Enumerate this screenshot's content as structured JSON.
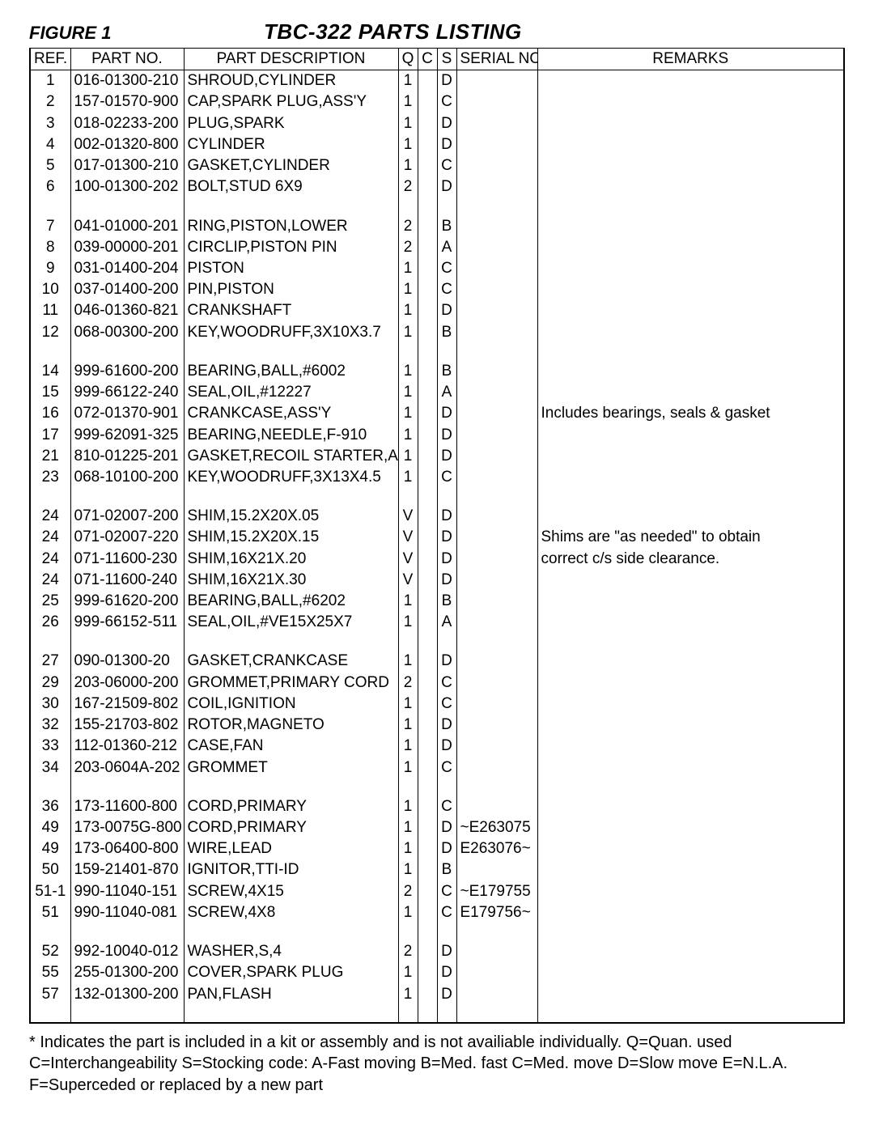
{
  "header": {
    "figure_label": "FIGURE 1",
    "title": "TBC-322 PARTS LISTING"
  },
  "columns": {
    "ref": "REF.",
    "partno": "PART NO.",
    "desc": "PART DESCRIPTION",
    "q": "Q",
    "c": "C",
    "s": "S",
    "serial": "SERIAL NO.",
    "remarks": "REMARKS"
  },
  "groups": [
    [
      {
        "ref": "1",
        "partno": "016-01300-210",
        "desc": "SHROUD,CYLINDER",
        "q": "1",
        "c": "",
        "s": "D",
        "serial": "",
        "remarks": ""
      },
      {
        "ref": "2",
        "partno": "157-01570-900",
        "desc": "CAP,SPARK PLUG,ASS'Y",
        "q": "1",
        "c": "",
        "s": "C",
        "serial": "",
        "remarks": ""
      },
      {
        "ref": "3",
        "partno": "018-02233-200",
        "desc": "PLUG,SPARK",
        "q": "1",
        "c": "",
        "s": "D",
        "serial": "",
        "remarks": ""
      },
      {
        "ref": "4",
        "partno": "002-01320-800",
        "desc": "CYLINDER",
        "q": "1",
        "c": "",
        "s": "D",
        "serial": "",
        "remarks": ""
      },
      {
        "ref": "5",
        "partno": "017-01300-210",
        "desc": "GASKET,CYLINDER",
        "q": "1",
        "c": "",
        "s": "C",
        "serial": "",
        "remarks": ""
      },
      {
        "ref": "6",
        "partno": "100-01300-202",
        "desc": "BOLT,STUD 6X9",
        "q": "2",
        "c": "",
        "s": "D",
        "serial": "",
        "remarks": ""
      }
    ],
    [
      {
        "ref": "7",
        "partno": "041-01000-201",
        "desc": "RING,PISTON,LOWER",
        "q": "2",
        "c": "",
        "s": "B",
        "serial": "",
        "remarks": ""
      },
      {
        "ref": "8",
        "partno": "039-00000-201",
        "desc": "CIRCLIP,PISTON PIN",
        "q": "2",
        "c": "",
        "s": "A",
        "serial": "",
        "remarks": ""
      },
      {
        "ref": "9",
        "partno": "031-01400-204",
        "desc": "PISTON",
        "q": "1",
        "c": "",
        "s": "C",
        "serial": "",
        "remarks": ""
      },
      {
        "ref": "10",
        "partno": "037-01400-200",
        "desc": "PIN,PISTON",
        "q": "1",
        "c": "",
        "s": "C",
        "serial": "",
        "remarks": ""
      },
      {
        "ref": "11",
        "partno": "046-01360-821",
        "desc": "CRANKSHAFT",
        "q": "1",
        "c": "",
        "s": "D",
        "serial": "",
        "remarks": ""
      },
      {
        "ref": "12",
        "partno": "068-00300-200",
        "desc": "KEY,WOODRUFF,3X10X3.7",
        "q": "1",
        "c": "",
        "s": "B",
        "serial": "",
        "remarks": ""
      }
    ],
    [
      {
        "ref": "14",
        "partno": "999-61600-200",
        "desc": "BEARING,BALL,#6002",
        "q": "1",
        "c": "",
        "s": "B",
        "serial": "",
        "remarks": ""
      },
      {
        "ref": "15",
        "partno": "999-66122-240",
        "desc": "SEAL,OIL,#12227",
        "q": "1",
        "c": "",
        "s": "A",
        "serial": "",
        "remarks": ""
      },
      {
        "ref": "16",
        "partno": "072-01370-901",
        "desc": "CRANKCASE,ASS'Y",
        "q": "1",
        "c": "",
        "s": "D",
        "serial": "",
        "remarks": "Includes bearings, seals & gasket"
      },
      {
        "ref": "17",
        "partno": "999-62091-325",
        "desc": "BEARING,NEEDLE,F-910",
        "q": "1",
        "c": "",
        "s": "D",
        "serial": "",
        "remarks": ""
      },
      {
        "ref": "21",
        "partno": "810-01225-201",
        "desc": "GASKET,RECOIL STARTER,A",
        "q": "1",
        "c": "",
        "s": "D",
        "serial": "",
        "remarks": ""
      },
      {
        "ref": "23",
        "partno": "068-10100-200",
        "desc": "KEY,WOODRUFF,3X13X4.5",
        "q": "1",
        "c": "",
        "s": "C",
        "serial": "",
        "remarks": ""
      }
    ],
    [
      {
        "ref": "24",
        "partno": "071-02007-200",
        "desc": "SHIM,15.2X20X.05",
        "q": "V",
        "c": "",
        "s": "D",
        "serial": "",
        "remarks": ""
      },
      {
        "ref": "24",
        "partno": "071-02007-220",
        "desc": "SHIM,15.2X20X.15",
        "q": "V",
        "c": "",
        "s": "D",
        "serial": "",
        "remarks": "Shims are \"as needed\" to obtain"
      },
      {
        "ref": "24",
        "partno": "071-11600-230",
        "desc": "SHIM,16X21X.20",
        "q": "V",
        "c": "",
        "s": "D",
        "serial": "",
        "remarks": "correct c/s side clearance."
      },
      {
        "ref": "24",
        "partno": "071-11600-240",
        "desc": "SHIM,16X21X.30",
        "q": "V",
        "c": "",
        "s": "D",
        "serial": "",
        "remarks": ""
      },
      {
        "ref": "25",
        "partno": "999-61620-200",
        "desc": "BEARING,BALL,#6202",
        "q": "1",
        "c": "",
        "s": "B",
        "serial": "",
        "remarks": ""
      },
      {
        "ref": "26",
        "partno": "999-66152-511",
        "desc": "SEAL,OIL,#VE15X25X7",
        "q": "1",
        "c": "",
        "s": "A",
        "serial": "",
        "remarks": ""
      }
    ],
    [
      {
        "ref": "27",
        "partno": "090-01300-20",
        "desc": "GASKET,CRANKCASE",
        "q": "1",
        "c": "",
        "s": "D",
        "serial": "",
        "remarks": ""
      },
      {
        "ref": "29",
        "partno": "203-06000-200",
        "desc": "GROMMET,PRIMARY CORD",
        "q": "2",
        "c": "",
        "s": "C",
        "serial": "",
        "remarks": ""
      },
      {
        "ref": "30",
        "partno": "167-21509-802",
        "desc": "COIL,IGNITION",
        "q": "1",
        "c": "",
        "s": "C",
        "serial": "",
        "remarks": ""
      },
      {
        "ref": "32",
        "partno": "155-21703-802",
        "desc": "ROTOR,MAGNETO",
        "q": "1",
        "c": "",
        "s": "D",
        "serial": "",
        "remarks": ""
      },
      {
        "ref": "33",
        "partno": "112-01360-212",
        "desc": "CASE,FAN",
        "q": "1",
        "c": "",
        "s": "D",
        "serial": "",
        "remarks": ""
      },
      {
        "ref": "34",
        "partno": "203-0604A-202",
        "desc": "GROMMET",
        "q": "1",
        "c": "",
        "s": "C",
        "serial": "",
        "remarks": ""
      }
    ],
    [
      {
        "ref": "36",
        "partno": "173-11600-800",
        "desc": "CORD,PRIMARY",
        "q": "1",
        "c": "",
        "s": "C",
        "serial": "",
        "remarks": ""
      },
      {
        "ref": "49",
        "partno": "173-0075G-800",
        "desc": "CORD,PRIMARY",
        "q": "1",
        "c": "",
        "s": "D",
        "serial": "~E263075",
        "remarks": ""
      },
      {
        "ref": "49",
        "partno": "173-06400-800",
        "desc": "WIRE,LEAD",
        "q": "1",
        "c": "",
        "s": "D",
        "serial": "E263076~",
        "remarks": ""
      },
      {
        "ref": "50",
        "partno": "159-21401-870",
        "desc": "IGNITOR,TTI-ID",
        "q": "1",
        "c": "",
        "s": "B",
        "serial": "",
        "remarks": ""
      },
      {
        "ref": "51-1",
        "partno": "990-11040-151",
        "desc": "SCREW,4X15",
        "q": "2",
        "c": "",
        "s": "C",
        "serial": "~E179755",
        "remarks": ""
      },
      {
        "ref": "51",
        "partno": "990-11040-081",
        "desc": "SCREW,4X8",
        "q": "1",
        "c": "",
        "s": "C",
        "serial": "E179756~",
        "remarks": ""
      }
    ],
    [
      {
        "ref": "52",
        "partno": "992-10040-012",
        "desc": "WASHER,S,4",
        "q": "2",
        "c": "",
        "s": "D",
        "serial": "",
        "remarks": ""
      },
      {
        "ref": "55",
        "partno": "255-01300-200",
        "desc": "COVER,SPARK PLUG",
        "q": "1",
        "c": "",
        "s": "D",
        "serial": "",
        "remarks": ""
      },
      {
        "ref": "57",
        "partno": "132-01300-200",
        "desc": "PAN,FLASH",
        "q": "1",
        "c": "",
        "s": "D",
        "serial": "",
        "remarks": ""
      }
    ]
  ],
  "footnote": "* Indicates the part is included in a kit or assembly and is not availiable individually. Q=Quan. used C=Interchangeability S=Stocking code: A-Fast moving B=Med. fast C=Med. move D=Slow move E=N.L.A. F=Superceded or replaced by a new part"
}
